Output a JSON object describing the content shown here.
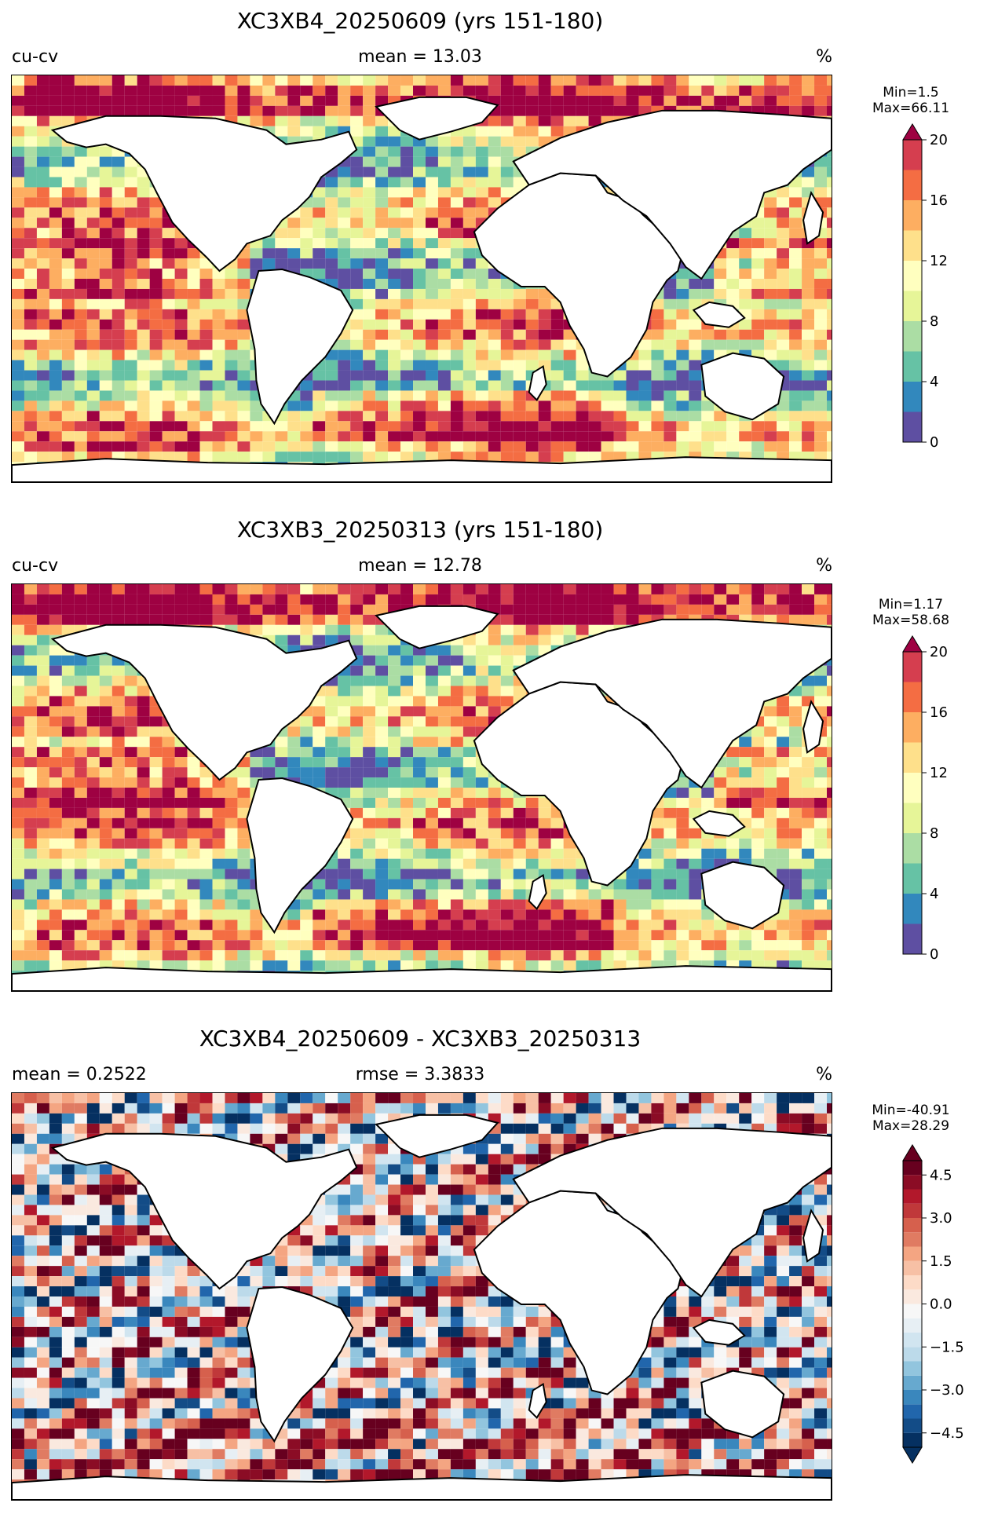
{
  "panels": [
    {
      "title": "XC3XB4_20250609 (yrs 151-180)",
      "left_label": "cu-cv",
      "center_label": "mean = 13.03",
      "right_label": "%",
      "min_text": "Min=1.5",
      "max_text": "Max=66.11",
      "colorbar": {
        "type": "sequential",
        "colors": [
          "#5e4fa2",
          "#3288bd",
          "#66c2a5",
          "#abdda4",
          "#e6f598",
          "#ffffbf",
          "#fee08b",
          "#fdae61",
          "#f46d43",
          "#d53e4f",
          "#9e0142"
        ],
        "extend_color": "#9e0142",
        "ticks": [
          "0",
          "4",
          "8",
          "12",
          "16",
          "20"
        ]
      }
    },
    {
      "title": "XC3XB3_20250313 (yrs 151-180)",
      "left_label": "cu-cv",
      "center_label": "mean = 12.78",
      "right_label": "%",
      "min_text": "Min=1.17",
      "max_text": "Max=58.68",
      "colorbar": {
        "type": "sequential",
        "colors": [
          "#5e4fa2",
          "#3288bd",
          "#66c2a5",
          "#abdda4",
          "#e6f598",
          "#ffffbf",
          "#fee08b",
          "#fdae61",
          "#f46d43",
          "#d53e4f",
          "#9e0142"
        ],
        "extend_color": "#9e0142",
        "ticks": [
          "0",
          "4",
          "8",
          "12",
          "16",
          "20"
        ]
      }
    },
    {
      "title": "XC3XB4_20250609 - XC3XB3_20250313",
      "left_label": "mean = 0.2522",
      "center_label": "rmse = 3.3833",
      "right_label": "%",
      "min_text": "Min=-40.91",
      "max_text": "Max=28.29",
      "colorbar": {
        "type": "diverging",
        "colors": [
          "#053061",
          "#134c87",
          "#2166ac",
          "#3a87bd",
          "#67a9cf",
          "#92c5de",
          "#bcdaea",
          "#d1e5f0",
          "#e7eff4",
          "#f7f7f7",
          "#fae9df",
          "#fddbc7",
          "#f7c0a5",
          "#f4a582",
          "#e07b62",
          "#d6604d",
          "#c0383a",
          "#b2182b",
          "#8b0c25",
          "#67001f"
        ],
        "extend_low_color": "#053061",
        "extend_high_color": "#67001f",
        "ticks": [
          "−4.5",
          "−3.0",
          "−1.5",
          "0.0",
          "1.5",
          "3.0",
          "4.5"
        ],
        "tick_values": [
          -4.5,
          -3.0,
          -1.5,
          0.0,
          1.5,
          3.0,
          4.5
        ],
        "range": [
          -5,
          5
        ]
      }
    }
  ]
}
